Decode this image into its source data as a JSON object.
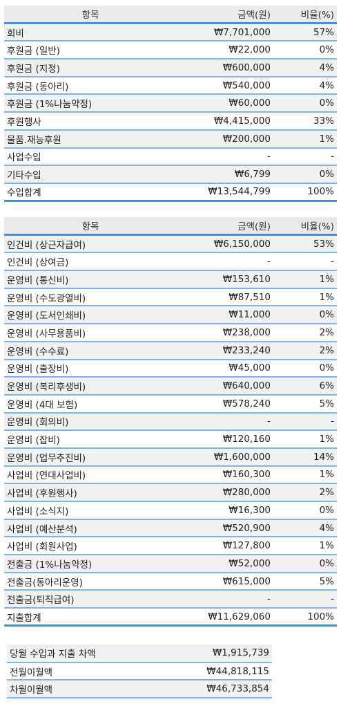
{
  "income": {
    "headers": {
      "item": "항목",
      "amount": "금액(원)",
      "ratio": "비율(%)"
    },
    "rows": [
      {
        "item": "회비",
        "amount": "₩7,701,000",
        "ratio": "57%"
      },
      {
        "item": "후원금 (일반)",
        "amount": "₩22,000",
        "ratio": "0%"
      },
      {
        "item": "후원금 (지정)",
        "amount": "₩600,000",
        "ratio": "4%"
      },
      {
        "item": "후원금 (동아리)",
        "amount": "₩540,000",
        "ratio": "4%"
      },
      {
        "item": "후원금 (1%나눔약정)",
        "amount": "₩60,000",
        "ratio": "0%"
      },
      {
        "item": "후원행사",
        "amount": "₩4,415,000",
        "ratio": "33%"
      },
      {
        "item": "물품.재능후원",
        "amount": "₩200,000",
        "ratio": "1%"
      },
      {
        "item": "사업수입",
        "amount": "-",
        "ratio": "-"
      },
      {
        "item": "기타수입",
        "amount": "₩6,799",
        "ratio": "0%"
      },
      {
        "item": "수입합계",
        "amount": "₩13,544,799",
        "ratio": "100%"
      }
    ]
  },
  "expense": {
    "headers": {
      "item": "항목",
      "amount": "금액(원)",
      "ratio": "비율(%)"
    },
    "rows": [
      {
        "item": "인건비 (상근자급여)",
        "amount": "₩6,150,000",
        "ratio": "53%"
      },
      {
        "item": "인건비 (상여금)",
        "amount": "-",
        "ratio": "-"
      },
      {
        "item": "운영비 (통신비)",
        "amount": "₩153,610",
        "ratio": "1%"
      },
      {
        "item": "운영비 (수도광열비)",
        "amount": "₩87,510",
        "ratio": "1%"
      },
      {
        "item": "운영비 (도서인쇄비)",
        "amount": "₩11,000",
        "ratio": "0%"
      },
      {
        "item": "운영비 (사무용품비)",
        "amount": "₩238,000",
        "ratio": "2%"
      },
      {
        "item": "운영비 (수수료)",
        "amount": "₩233,240",
        "ratio": "2%"
      },
      {
        "item": "운영비 (출장비)",
        "amount": "₩45,000",
        "ratio": "0%"
      },
      {
        "item": "운영비 (복리후생비)",
        "amount": "₩640,000",
        "ratio": "6%"
      },
      {
        "item": "운영비 (4대 보험)",
        "amount": "₩578,240",
        "ratio": "5%"
      },
      {
        "item": "운영비 (회의비)",
        "amount": "-",
        "ratio": "-"
      },
      {
        "item": "운영비 (잡비)",
        "amount": "₩120,160",
        "ratio": "1%"
      },
      {
        "item": "운영비 (업무추진비)",
        "amount": "₩1,600,000",
        "ratio": "14%"
      },
      {
        "item": "사업비 (연대사업비)",
        "amount": "₩160,300",
        "ratio": "1%"
      },
      {
        "item": "사업비 (후원행사)",
        "amount": "₩280,000",
        "ratio": "2%"
      },
      {
        "item": "사업비 (소식지)",
        "amount": "₩16,300",
        "ratio": "0%"
      },
      {
        "item": "사업비 (예산분석)",
        "amount": "₩520,900",
        "ratio": "4%"
      },
      {
        "item": "사업비 (회원사업)",
        "amount": "₩127,800",
        "ratio": "1%"
      },
      {
        "item": "전출금 (1%나눔약정)",
        "amount": "₩52,000",
        "ratio": "0%"
      },
      {
        "item": "전출금(동아리운영)",
        "amount": "₩615,000",
        "ratio": "5%"
      },
      {
        "item": "전출금(퇴직급여)",
        "amount": "-",
        "ratio": "-"
      },
      {
        "item": "지출합계",
        "amount": "₩11,629,060",
        "ratio": "100%"
      }
    ]
  },
  "summary": {
    "rows": [
      {
        "label": "당월 수입과 지출 차액",
        "amount": "₩1,915,739"
      },
      {
        "label": "전월이월액",
        "amount": "₩44,818,115"
      },
      {
        "label": "차월이월액",
        "amount": "₩46,733,854"
      }
    ]
  }
}
